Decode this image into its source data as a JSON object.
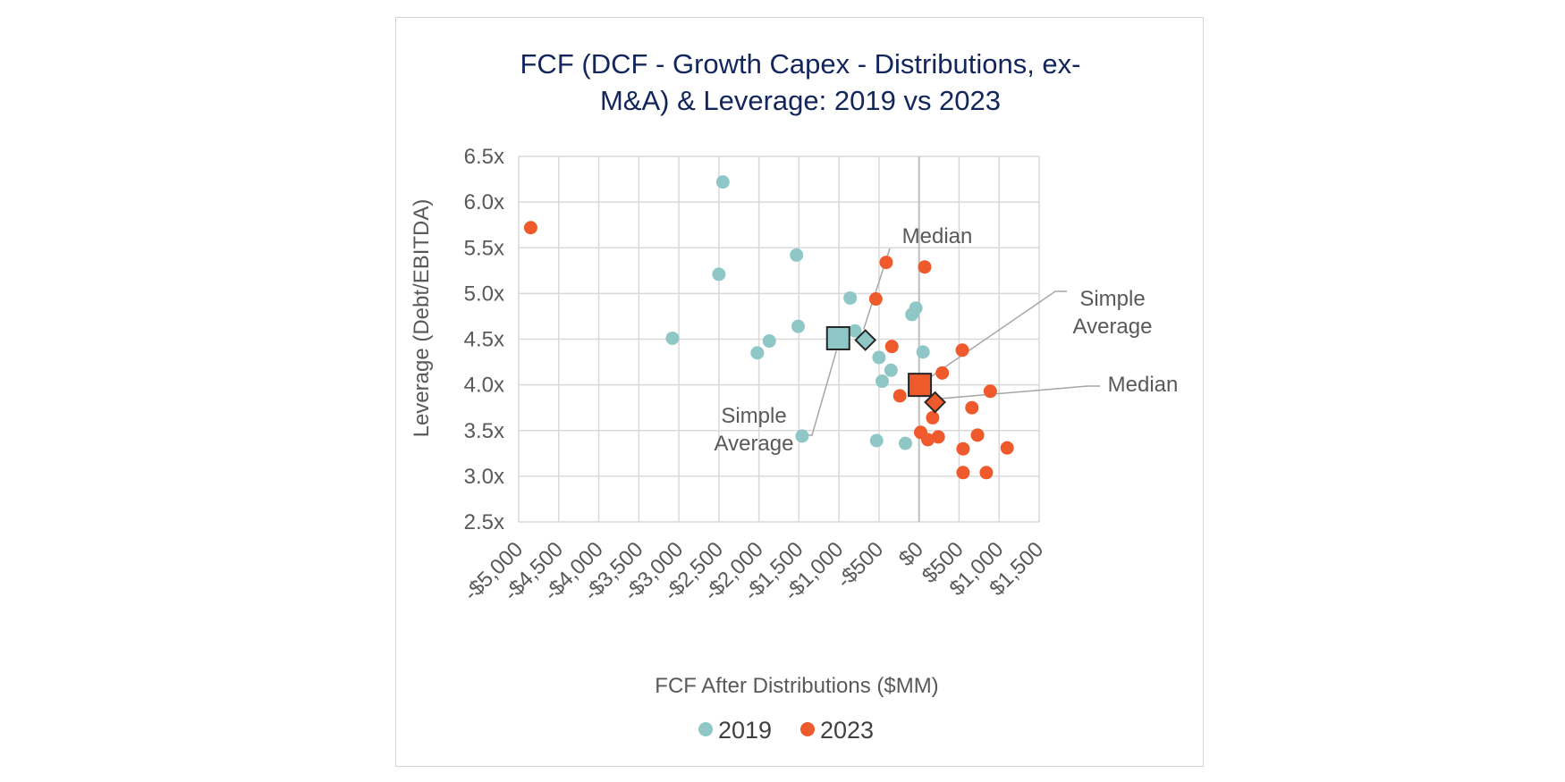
{
  "chart_data": {
    "type": "scatter",
    "title_lines": [
      "FCF (DCF - Growth Capex - Distributions, ex-",
      "M&A) & Leverage: 2019 vs 2023"
    ],
    "xlabel": "FCF After Distributions ($MM)",
    "ylabel": "Leverage (Debt/EBITDA)",
    "xlim": [
      -5000,
      1500
    ],
    "ylim": [
      2.5,
      6.5
    ],
    "x_ticks": [
      -5000,
      -4500,
      -4000,
      -3500,
      -3000,
      -2500,
      -2000,
      -1500,
      -1000,
      -500,
      0,
      500,
      1000,
      1500
    ],
    "x_tick_labels": [
      "-$5,000",
      "-$4,500",
      "-$4,000",
      "-$3,500",
      "-$3,000",
      "-$2,500",
      "-$2,000",
      "-$1,500",
      "-$1,000",
      "-$500",
      "$0",
      "$500",
      "$1,000",
      "$1,500"
    ],
    "y_ticks": [
      2.5,
      3.0,
      3.5,
      4.0,
      4.5,
      5.0,
      5.5,
      6.0,
      6.5
    ],
    "y_tick_labels": [
      "2.5x",
      "3.0x",
      "3.5x",
      "4.0x",
      "4.5x",
      "5.0x",
      "5.5x",
      "6.0x",
      "6.5x"
    ],
    "grid": true,
    "legend_position": "bottom",
    "series": [
      {
        "name": "2019",
        "color": "#8fc7c7",
        "points": [
          [
            -2450,
            6.22
          ],
          [
            -2500,
            5.21
          ],
          [
            -3080,
            4.51
          ],
          [
            -1530,
            5.42
          ],
          [
            -1510,
            4.64
          ],
          [
            -2020,
            4.35
          ],
          [
            -1870,
            4.48
          ],
          [
            -1460,
            3.44
          ],
          [
            -860,
            4.95
          ],
          [
            -800,
            4.59
          ],
          [
            -500,
            4.3
          ],
          [
            -460,
            4.04
          ],
          [
            -350,
            4.16
          ],
          [
            -530,
            3.39
          ],
          [
            -170,
            3.36
          ],
          [
            -40,
            4.84
          ],
          [
            -90,
            4.77
          ],
          [
            50,
            4.36
          ]
        ],
        "simple_average": [
          -1010,
          4.51
        ],
        "median": [
          -670,
          4.49
        ]
      },
      {
        "name": "2023",
        "color": "#ee5a2c",
        "points": [
          [
            -4850,
            5.72
          ],
          [
            -410,
            5.34
          ],
          [
            70,
            5.29
          ],
          [
            -540,
            4.94
          ],
          [
            -340,
            4.42
          ],
          [
            -240,
            3.88
          ],
          [
            540,
            4.38
          ],
          [
            290,
            4.13
          ],
          [
            660,
            3.75
          ],
          [
            890,
            3.93
          ],
          [
            170,
            3.64
          ],
          [
            20,
            3.48
          ],
          [
            110,
            3.4
          ],
          [
            240,
            3.43
          ],
          [
            730,
            3.45
          ],
          [
            550,
            3.3
          ],
          [
            1100,
            3.31
          ],
          [
            550,
            3.04
          ],
          [
            840,
            3.04
          ]
        ],
        "simple_average": [
          10,
          4.0
        ],
        "median": [
          200,
          3.81
        ]
      }
    ],
    "annotations": [
      {
        "text": "Median",
        "series": "2019",
        "target": "median"
      },
      {
        "text": "Simple Average",
        "series": "2019",
        "target": "simple_average"
      },
      {
        "text": "Simple Average",
        "series": "2023",
        "target": "simple_average"
      },
      {
        "text": "Median",
        "series": "2023",
        "target": "median"
      }
    ]
  }
}
